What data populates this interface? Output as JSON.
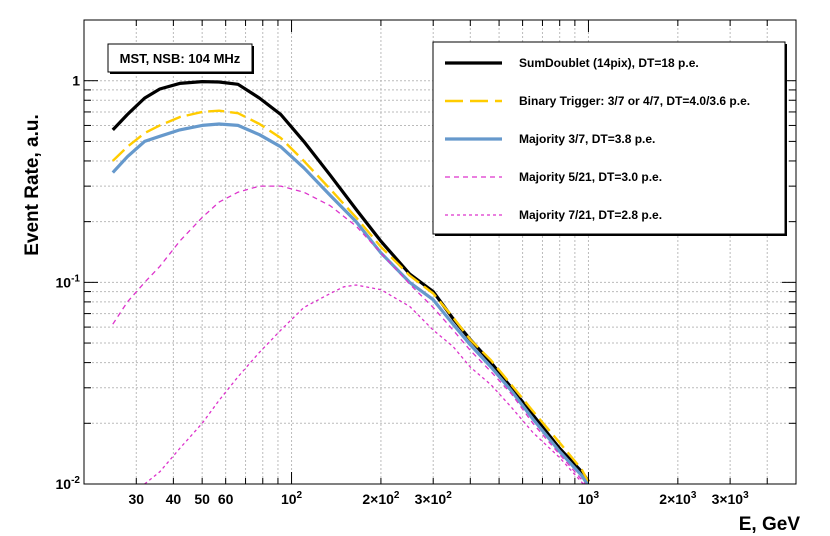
{
  "chart_data": {
    "type": "line",
    "title": "",
    "xlabel": "E, GeV",
    "ylabel": "Event Rate,  a.u.",
    "x_scale": "log",
    "y_scale": "log",
    "xlim": [
      20,
      5000
    ],
    "ylim": [
      0.01,
      2.0
    ],
    "grid": true,
    "label_box": "MST, NSB: 104 MHz",
    "legend_position": "top-right",
    "x_ticks": [
      {
        "value": 30,
        "label": "30",
        "exp": ""
      },
      {
        "value": 40,
        "label": "40",
        "exp": ""
      },
      {
        "value": 50,
        "label": "50",
        "exp": ""
      },
      {
        "value": 60,
        "label": "60",
        "exp": ""
      },
      {
        "value": 100,
        "label": "10",
        "exp": "2"
      },
      {
        "value": 200,
        "label": "2×10",
        "exp": "2"
      },
      {
        "value": 300,
        "label": "3×10",
        "exp": "2"
      },
      {
        "value": 1000,
        "label": "10",
        "exp": "3"
      },
      {
        "value": 2000,
        "label": "2×10",
        "exp": "3"
      },
      {
        "value": 3000,
        "label": "3×10",
        "exp": "3"
      }
    ],
    "y_ticks": [
      {
        "value": 1,
        "label": "1",
        "exp": ""
      },
      {
        "value": 0.1,
        "label": "10",
        "exp": "-1"
      },
      {
        "value": 0.01,
        "label": "10",
        "exp": "-2"
      }
    ],
    "series": [
      {
        "name": "SumDoublet (14pix), DT=18 p.e.",
        "color": "#000000",
        "style": "solid",
        "width": 3.2,
        "x": [
          25,
          28,
          32,
          36,
          42,
          50,
          57,
          66,
          78,
          92,
          110,
          135,
          165,
          200,
          250,
          300,
          350,
          400,
          470,
          550,
          650,
          800,
          950,
          1000
        ],
        "y": [
          0.57,
          0.68,
          0.82,
          0.91,
          0.97,
          0.99,
          0.985,
          0.96,
          0.82,
          0.68,
          0.5,
          0.34,
          0.23,
          0.16,
          0.11,
          0.09,
          0.066,
          0.052,
          0.04,
          0.03,
          0.022,
          0.015,
          0.0115,
          0.0103
        ]
      },
      {
        "name": "Binary Trigger: 3/7 or 4/7, DT=4.0/3.6 p.e.",
        "color": "#ffcc00",
        "style": "longdash",
        "width": 2.4,
        "x": [
          25,
          28,
          32,
          36,
          42,
          50,
          57,
          66,
          78,
          92,
          110,
          135,
          165,
          200,
          250,
          300,
          350,
          400,
          470,
          550,
          650,
          800,
          950,
          1000
        ],
        "y": [
          0.4,
          0.47,
          0.55,
          0.6,
          0.66,
          0.7,
          0.71,
          0.69,
          0.61,
          0.52,
          0.4,
          0.29,
          0.21,
          0.15,
          0.108,
          0.088,
          0.067,
          0.052,
          0.041,
          0.031,
          0.023,
          0.016,
          0.0118,
          0.0102
        ]
      },
      {
        "name": "Majority 3/7,  DT=3.8 p.e.",
        "color": "#6699cc",
        "style": "solid",
        "width": 3.2,
        "x": [
          25,
          28,
          32,
          36,
          42,
          50,
          57,
          66,
          78,
          92,
          110,
          135,
          165,
          200,
          250,
          300,
          350,
          400,
          470,
          550,
          650,
          800,
          950,
          1000
        ],
        "y": [
          0.35,
          0.42,
          0.5,
          0.53,
          0.57,
          0.6,
          0.61,
          0.6,
          0.54,
          0.47,
          0.37,
          0.27,
          0.2,
          0.14,
          0.1,
          0.082,
          0.062,
          0.049,
          0.038,
          0.029,
          0.021,
          0.0145,
          0.011,
          0.0098
        ]
      },
      {
        "name": "Majority 5/21, DT=3.0 p.e.",
        "color": "#dd33cc",
        "style": "dashed",
        "width": 1.3,
        "x": [
          25,
          28,
          32,
          36,
          42,
          50,
          57,
          66,
          78,
          92,
          110,
          135,
          165,
          200,
          250,
          300,
          350,
          400,
          470,
          550,
          650,
          800,
          950,
          1000
        ],
        "y": [
          0.062,
          0.08,
          0.1,
          0.12,
          0.16,
          0.21,
          0.25,
          0.28,
          0.3,
          0.3,
          0.28,
          0.24,
          0.19,
          0.14,
          0.098,
          0.075,
          0.058,
          0.046,
          0.036,
          0.028,
          0.02,
          0.014,
          0.0105,
          0.0095
        ]
      },
      {
        "name": "Majority 7/21, DT=2.8 p.e.",
        "color": "#dd33cc",
        "style": "dotted",
        "width": 1.3,
        "x": [
          32,
          36,
          42,
          50,
          57,
          66,
          78,
          92,
          110,
          135,
          150,
          165,
          200,
          250,
          300,
          350,
          400,
          470,
          550,
          650,
          800,
          950,
          1000
        ],
        "y": [
          0.01,
          0.0115,
          0.015,
          0.02,
          0.026,
          0.034,
          0.045,
          0.058,
          0.075,
          0.088,
          0.095,
          0.097,
          0.092,
          0.076,
          0.058,
          0.048,
          0.038,
          0.031,
          0.024,
          0.018,
          0.0135,
          0.0102,
          0.0093
        ]
      }
    ]
  }
}
